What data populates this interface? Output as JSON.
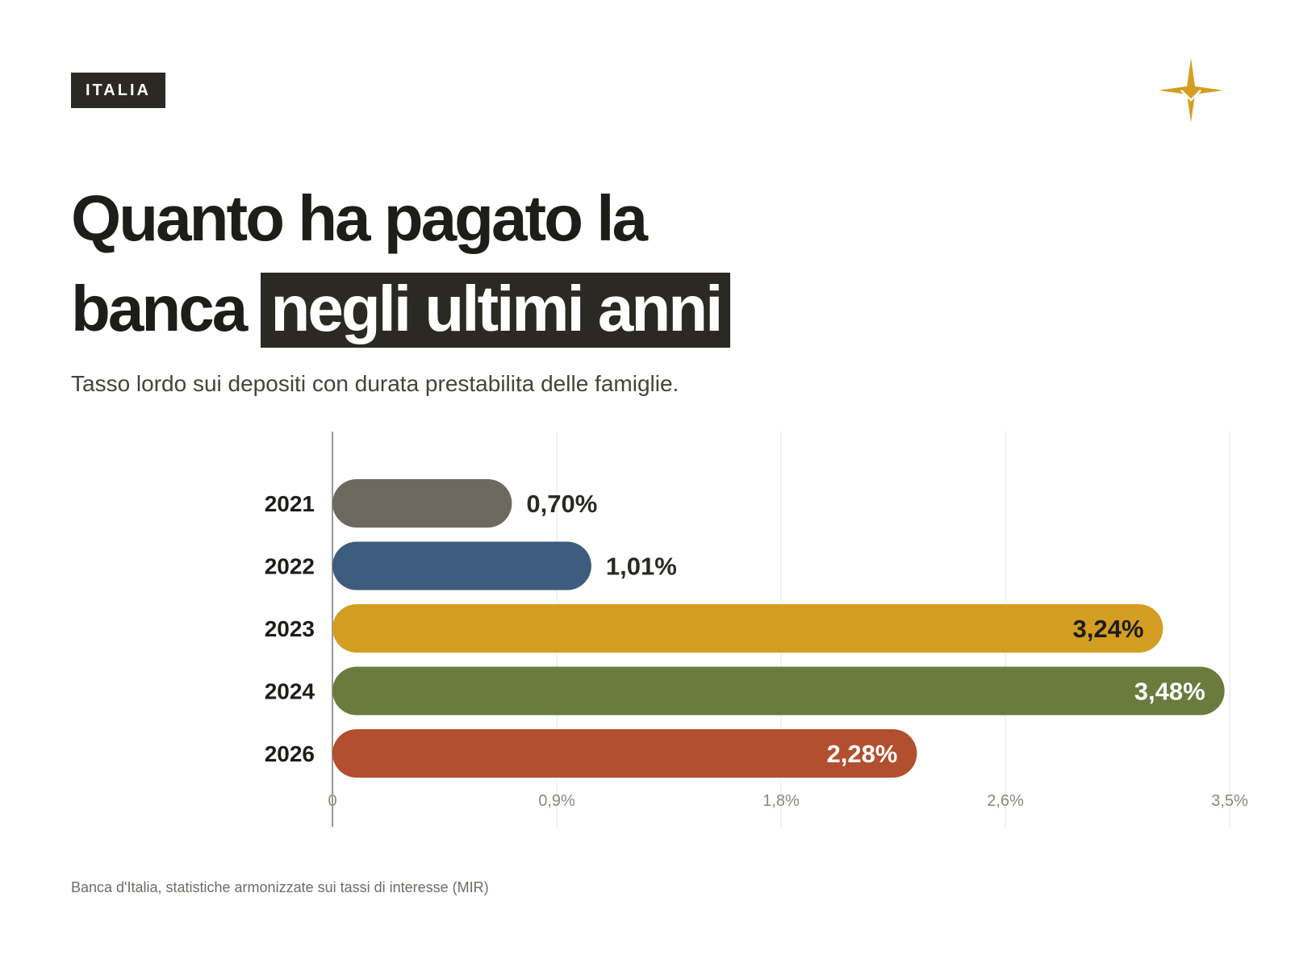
{
  "tag": "ITALIA",
  "title": {
    "line1": "Quanto ha pagato la",
    "line2_plain": "banca",
    "line2_highlight": "negli ultimi anni"
  },
  "subtitle": "Tasso lordo sui depositi con durata prestabilita delle famiglie.",
  "source": "Banca d'Italia, statistiche armonizzate sui tassi di interesse (MIR)",
  "logo_icon": "four-point-star-icon",
  "colors": {
    "ink": "#2b2923",
    "gold": "#d49e22",
    "gridline": "#e6e4df"
  },
  "chart_data": {
    "type": "bar",
    "orientation": "horizontal",
    "categories": [
      "2021",
      "2022",
      "2023",
      "2024",
      "2026"
    ],
    "values": [
      0.7,
      1.01,
      3.24,
      3.48,
      2.28
    ],
    "value_labels": [
      "0,70%",
      "1,01%",
      "3,24%",
      "3,48%",
      "2,28%"
    ],
    "bar_colors": [
      "#6d6961",
      "#3e5c7e",
      "#d49e22",
      "#6b7a3d",
      "#b14f2e"
    ],
    "value_label_colors": [
      "#2b2923",
      "#2b2923",
      "#1e1d1a",
      "#ffffff",
      "#ffffff"
    ],
    "value_label_inside": [
      false,
      false,
      true,
      true,
      true
    ],
    "xlim": [
      0,
      3.5
    ],
    "xticks": [
      0,
      0.875,
      1.75,
      2.625,
      3.5
    ],
    "xtick_labels": [
      "0",
      "0,9%",
      "1,8%",
      "2,6%",
      "3,5%"
    ],
    "grid": true,
    "legend": "none"
  }
}
